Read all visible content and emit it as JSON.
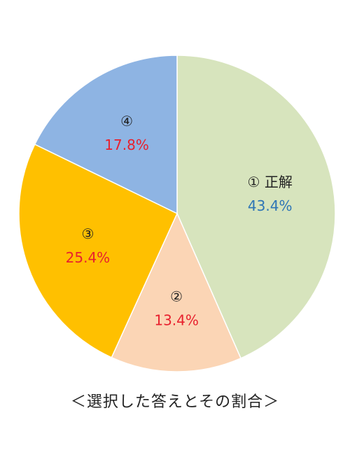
{
  "chart_data": {
    "type": "pie",
    "caption": "＜選択した答えとその割合＞",
    "slices": [
      {
        "label": "① 正解",
        "value": 43.4,
        "value_label": "43.4%",
        "color": "#d7e4bd",
        "label_color": "#222222",
        "value_color": "#2e75b6"
      },
      {
        "label": "②",
        "value": 13.4,
        "value_label": "13.4%",
        "color": "#fbd5b5",
        "label_color": "#222222",
        "value_color": "#e8212e"
      },
      {
        "label": "③",
        "value": 25.4,
        "value_label": "25.4%",
        "color": "#ffc000",
        "label_color": "#222222",
        "value_color": "#e8212e"
      },
      {
        "label": "④",
        "value": 17.8,
        "value_label": "17.8%",
        "color": "#8eb4e3",
        "label_color": "#222222",
        "value_color": "#e8212e"
      }
    ]
  }
}
